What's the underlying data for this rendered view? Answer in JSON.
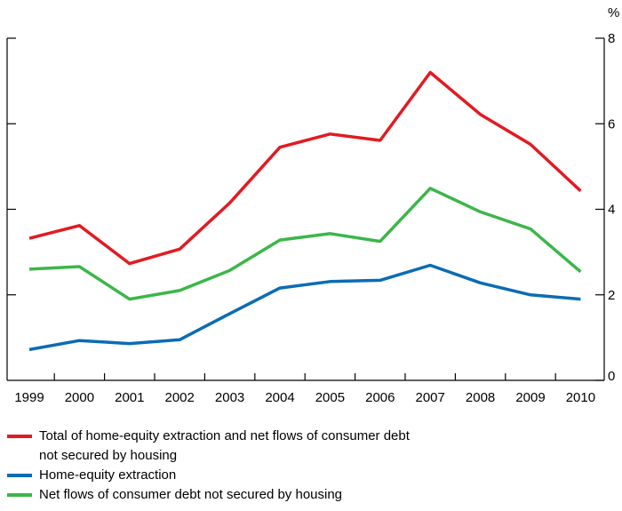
{
  "chart_data": {
    "type": "line",
    "x": [
      "1999",
      "2000",
      "2001",
      "2002",
      "2003",
      "2004",
      "2005",
      "2006",
      "2007",
      "2008",
      "2009",
      "2010"
    ],
    "x_tick_labels": [
      "1999",
      "2000",
      "2001",
      "2002",
      "2003",
      "2004",
      "2005",
      "2006",
      "2007",
      "2008",
      "2009",
      "2010"
    ],
    "y_unit": "%",
    "ylim": [
      0,
      8
    ],
    "y_ticks": [
      0,
      2,
      4,
      6,
      8
    ],
    "y_axis_side": "right",
    "grid": false,
    "legend_position": "bottom",
    "series": [
      {
        "name": "Total of home-equity extraction and net flows of consumer debt\nnot secured by housing",
        "color": "#e11b22",
        "values": [
          3.32,
          3.62,
          2.73,
          3.07,
          4.15,
          5.45,
          5.76,
          5.61,
          7.2,
          6.22,
          5.52,
          4.43
        ]
      },
      {
        "name": "Home-equity extraction",
        "color": "#0a6cb4",
        "values": [
          0.72,
          0.93,
          0.86,
          0.95,
          1.56,
          2.16,
          2.31,
          2.34,
          2.69,
          2.28,
          2.0,
          1.9
        ]
      },
      {
        "name": "Net flows of consumer debt not secured by housing",
        "color": "#3cb64a",
        "values": [
          2.6,
          2.66,
          1.9,
          2.1,
          2.57,
          3.28,
          3.43,
          3.25,
          4.49,
          3.94,
          3.54,
          2.54
        ]
      }
    ]
  }
}
